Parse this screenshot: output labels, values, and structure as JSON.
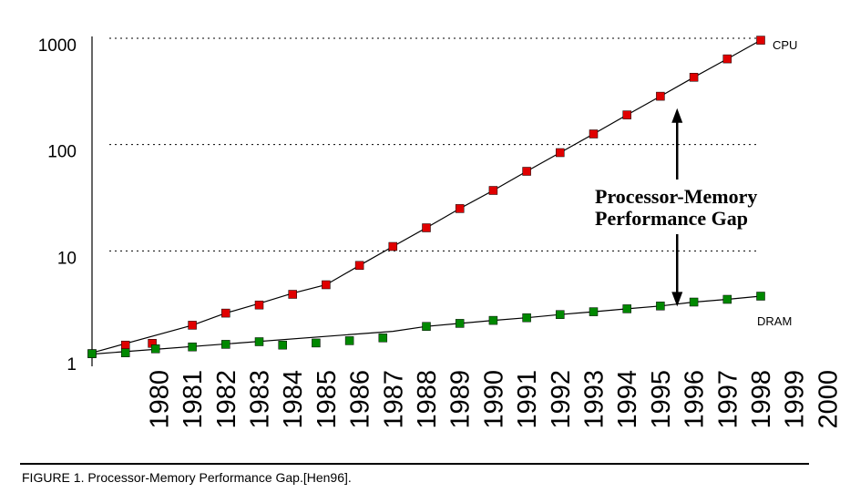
{
  "chart_data": {
    "type": "line",
    "yscale": "log",
    "ylim": [
      1,
      1000
    ],
    "yticks": [
      1,
      10,
      100,
      1000
    ],
    "ytick_labels": [
      "1",
      "10",
      "100",
      "1000"
    ],
    "x_tick_labels": [
      "1980",
      "1981",
      "1982",
      "1983",
      "1984",
      "1985",
      "1986",
      "1987",
      "1988",
      "1989",
      "1990",
      "1991",
      "1992",
      "1993",
      "1994",
      "1995",
      "1996",
      "1997",
      "1998",
      "1999",
      "2000"
    ],
    "grid": "dotted horizontal at 10, 100, 1000",
    "series": [
      {
        "name": "CPU",
        "color": "#e00000",
        "points": [
          {
            "x": 1978.0,
            "y": 1.08
          },
          {
            "x": 1979.0,
            "y": 1.3
          },
          {
            "x": 1979.8,
            "y": 1.35
          },
          {
            "x": 1981.0,
            "y": 2.0
          },
          {
            "x": 1982.0,
            "y": 2.6
          },
          {
            "x": 1983.0,
            "y": 3.1
          },
          {
            "x": 1984.0,
            "y": 3.9
          },
          {
            "x": 1985.0,
            "y": 4.8
          },
          {
            "x": 1986.0,
            "y": 7.3
          },
          {
            "x": 1987.0,
            "y": 11.0
          },
          {
            "x": 1988.0,
            "y": 16.5
          },
          {
            "x": 1989.0,
            "y": 25.0
          },
          {
            "x": 1990.0,
            "y": 37.0
          },
          {
            "x": 1991.0,
            "y": 56.0
          },
          {
            "x": 1992.0,
            "y": 84.0
          },
          {
            "x": 1993.0,
            "y": 126.0
          },
          {
            "x": 1994.0,
            "y": 190.0
          },
          {
            "x": 1995.0,
            "y": 285.0
          },
          {
            "x": 1996.0,
            "y": 430.0
          },
          {
            "x": 1997.0,
            "y": 640.0
          },
          {
            "x": 1998.0,
            "y": 960.0
          }
        ],
        "line": [
          {
            "x": 1978.0,
            "y": 1.1
          },
          {
            "x": 1981.0,
            "y": 2.0
          },
          {
            "x": 1982.0,
            "y": 2.6
          },
          {
            "x": 1983.0,
            "y": 3.2
          },
          {
            "x": 1984.0,
            "y": 4.0
          },
          {
            "x": 1985.0,
            "y": 4.8
          },
          {
            "x": 1986.0,
            "y": 7.3
          },
          {
            "x": 1987.0,
            "y": 11.0
          },
          {
            "x": 1988.0,
            "y": 16.5
          },
          {
            "x": 1989.0,
            "y": 25.0
          },
          {
            "x": 1990.0,
            "y": 37.0
          },
          {
            "x": 1991.0,
            "y": 56.0
          },
          {
            "x": 1992.0,
            "y": 84.0
          },
          {
            "x": 1993.0,
            "y": 126.0
          },
          {
            "x": 1994.0,
            "y": 190.0
          },
          {
            "x": 1995.0,
            "y": 285.0
          },
          {
            "x": 1996.0,
            "y": 430.0
          },
          {
            "x": 1997.0,
            "y": 640.0
          },
          {
            "x": 1998.0,
            "y": 960.0
          }
        ]
      },
      {
        "name": "DRAM",
        "color": "#008800",
        "points": [
          {
            "x": 1978.0,
            "y": 1.08
          },
          {
            "x": 1979.0,
            "y": 1.1
          },
          {
            "x": 1979.9,
            "y": 1.2
          },
          {
            "x": 1981.0,
            "y": 1.25
          },
          {
            "x": 1982.0,
            "y": 1.32
          },
          {
            "x": 1983.0,
            "y": 1.4
          },
          {
            "x": 1983.7,
            "y": 1.3
          },
          {
            "x": 1984.7,
            "y": 1.36
          },
          {
            "x": 1985.7,
            "y": 1.43
          },
          {
            "x": 1986.7,
            "y": 1.52
          },
          {
            "x": 1988.0,
            "y": 1.95
          },
          {
            "x": 1989.0,
            "y": 2.08
          },
          {
            "x": 1990.0,
            "y": 2.22
          },
          {
            "x": 1991.0,
            "y": 2.35
          },
          {
            "x": 1992.0,
            "y": 2.52
          },
          {
            "x": 1993.0,
            "y": 2.68
          },
          {
            "x": 1994.0,
            "y": 2.85
          },
          {
            "x": 1995.0,
            "y": 3.03
          },
          {
            "x": 1996.0,
            "y": 3.3
          },
          {
            "x": 1997.0,
            "y": 3.5
          },
          {
            "x": 1998.0,
            "y": 3.75
          }
        ],
        "line": [
          {
            "x": 1978.0,
            "y": 1.07
          },
          {
            "x": 1987.0,
            "y": 1.75
          },
          {
            "x": 1988.0,
            "y": 1.95
          },
          {
            "x": 1989.0,
            "y": 2.08
          },
          {
            "x": 1990.0,
            "y": 2.22
          },
          {
            "x": 1991.0,
            "y": 2.35
          },
          {
            "x": 1992.0,
            "y": 2.52
          },
          {
            "x": 1993.0,
            "y": 2.68
          },
          {
            "x": 1994.0,
            "y": 2.85
          },
          {
            "x": 1995.0,
            "y": 3.03
          },
          {
            "x": 1996.0,
            "y": 3.3
          },
          {
            "x": 1997.0,
            "y": 3.5
          },
          {
            "x": 1998.0,
            "y": 3.75
          }
        ]
      }
    ],
    "annotation": {
      "lines": [
        "Processor-Memory",
        "Performance Gap"
      ],
      "arrow_x": 1995.5,
      "arrow_top_y": 220,
      "arrow_bottom_y": 3.0
    }
  },
  "caption": "FIGURE 1. Processor-Memory Performance Gap.[Hen96]."
}
